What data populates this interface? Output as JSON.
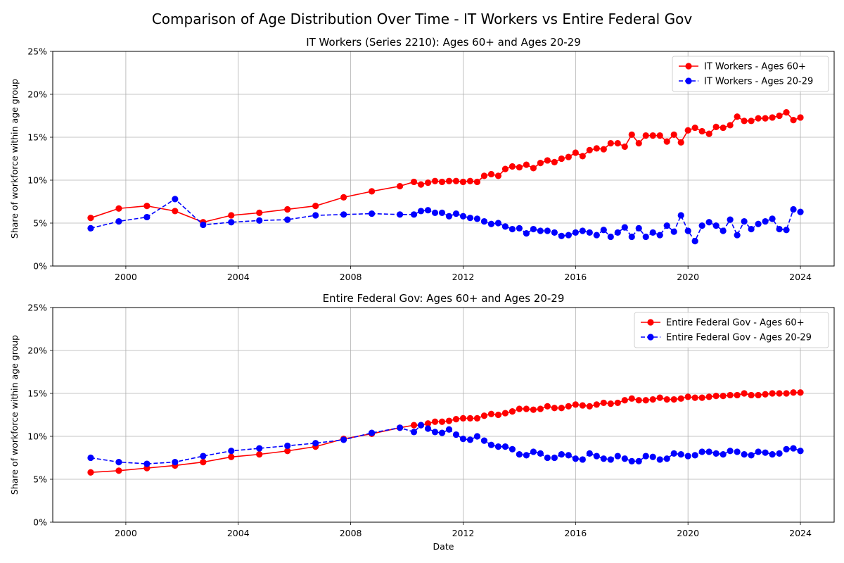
{
  "figure": {
    "suptitle": "Comparison of Age Distribution Over Time - IT Workers vs Entire Federal Gov"
  },
  "chart_data": [
    {
      "type": "line",
      "title": "IT Workers (Series 2210): Ages 60+ and Ages 20-29",
      "xlabel": "",
      "ylabel": "Share of workforce within age group",
      "xlim": [
        1997.4,
        2025.2
      ],
      "ylim": [
        0,
        25
      ],
      "xticks": [
        2000,
        2004,
        2008,
        2012,
        2016,
        2020,
        2024
      ],
      "xtick_labels": [
        "2000",
        "2004",
        "2008",
        "2012",
        "2016",
        "2020",
        "2024"
      ],
      "yticks": [
        0,
        5,
        10,
        15,
        20,
        25
      ],
      "ytick_labels": [
        "0%",
        "5%",
        "10%",
        "15%",
        "20%",
        "25%"
      ],
      "grid": true,
      "legend_position": "upper right",
      "x": [
        1998.75,
        1999.75,
        2000.75,
        2001.75,
        2002.75,
        2003.75,
        2004.75,
        2005.75,
        2006.75,
        2007.75,
        2008.75,
        2009.75,
        2010.25,
        2010.5,
        2010.75,
        2011.0,
        2011.25,
        2011.5,
        2011.75,
        2012.0,
        2012.25,
        2012.5,
        2012.75,
        2013.0,
        2013.25,
        2013.5,
        2013.75,
        2014.0,
        2014.25,
        2014.5,
        2014.75,
        2015.0,
        2015.25,
        2015.5,
        2015.75,
        2016.0,
        2016.25,
        2016.5,
        2016.75,
        2017.0,
        2017.25,
        2017.5,
        2017.75,
        2018.0,
        2018.25,
        2018.5,
        2018.75,
        2019.0,
        2019.25,
        2019.5,
        2019.75,
        2020.0,
        2020.25,
        2020.5,
        2020.75,
        2021.0,
        2021.25,
        2021.5,
        2021.75,
        2022.0,
        2022.25,
        2022.5,
        2022.75,
        2023.0,
        2023.25,
        2023.5,
        2023.75,
        2024.0
      ],
      "series": [
        {
          "name": "IT Workers - Ages 60+",
          "color": "#ff0000",
          "linestyle": "solid",
          "values": [
            5.6,
            6.7,
            7.0,
            6.4,
            5.1,
            5.9,
            6.2,
            6.6,
            7.0,
            8.0,
            8.7,
            9.3,
            9.8,
            9.5,
            9.7,
            9.9,
            9.8,
            9.9,
            9.9,
            9.8,
            9.9,
            9.8,
            10.5,
            10.7,
            10.5,
            11.3,
            11.6,
            11.5,
            11.8,
            11.4,
            12.0,
            12.3,
            12.1,
            12.5,
            12.7,
            13.2,
            12.8,
            13.5,
            13.7,
            13.6,
            14.3,
            14.3,
            13.9,
            15.3,
            14.3,
            15.2,
            15.2,
            15.2,
            14.5,
            15.3,
            14.4,
            15.8,
            16.1,
            15.7,
            15.4,
            16.2,
            16.1,
            16.4,
            17.4,
            16.9,
            16.9,
            17.2,
            17.2,
            17.3,
            17.5,
            17.9,
            17.0,
            17.3
          ]
        },
        {
          "name": "IT Workers - Ages 20-29",
          "color": "#0000ff",
          "linestyle": "dashed",
          "values": [
            4.4,
            5.2,
            5.7,
            7.8,
            4.8,
            5.1,
            5.3,
            5.4,
            5.9,
            6.0,
            6.1,
            6.0,
            6.0,
            6.4,
            6.5,
            6.2,
            6.2,
            5.8,
            6.1,
            5.8,
            5.6,
            5.5,
            5.2,
            4.9,
            5.0,
            4.6,
            4.3,
            4.4,
            3.8,
            4.3,
            4.1,
            4.1,
            3.9,
            3.5,
            3.6,
            3.9,
            4.1,
            3.9,
            3.6,
            4.2,
            3.4,
            3.9,
            4.5,
            3.4,
            4.4,
            3.4,
            3.9,
            3.6,
            4.7,
            4.0,
            5.9,
            4.1,
            2.9,
            4.7,
            5.1,
            4.7,
            4.1,
            5.4,
            3.6,
            5.2,
            4.3,
            4.9,
            5.2,
            5.5,
            4.3,
            4.2,
            6.6,
            6.3
          ]
        }
      ]
    },
    {
      "type": "line",
      "title": "Entire Federal Gov: Ages 60+ and Ages 20-29",
      "xlabel": "Date",
      "ylabel": "Share of workforce within age group",
      "xlim": [
        1997.4,
        2025.2
      ],
      "ylim": [
        0,
        25
      ],
      "xticks": [
        2000,
        2004,
        2008,
        2012,
        2016,
        2020,
        2024
      ],
      "xtick_labels": [
        "2000",
        "2004",
        "2008",
        "2012",
        "2016",
        "2020",
        "2024"
      ],
      "yticks": [
        0,
        5,
        10,
        15,
        20,
        25
      ],
      "ytick_labels": [
        "0%",
        "5%",
        "10%",
        "15%",
        "20%",
        "25%"
      ],
      "grid": true,
      "legend_position": "upper right",
      "x": [
        1998.75,
        1999.75,
        2000.75,
        2001.75,
        2002.75,
        2003.75,
        2004.75,
        2005.75,
        2006.75,
        2007.75,
        2008.75,
        2009.75,
        2010.25,
        2010.5,
        2010.75,
        2011.0,
        2011.25,
        2011.5,
        2011.75,
        2012.0,
        2012.25,
        2012.5,
        2012.75,
        2013.0,
        2013.25,
        2013.5,
        2013.75,
        2014.0,
        2014.25,
        2014.5,
        2014.75,
        2015.0,
        2015.25,
        2015.5,
        2015.75,
        2016.0,
        2016.25,
        2016.5,
        2016.75,
        2017.0,
        2017.25,
        2017.5,
        2017.75,
        2018.0,
        2018.25,
        2018.5,
        2018.75,
        2019.0,
        2019.25,
        2019.5,
        2019.75,
        2020.0,
        2020.25,
        2020.5,
        2020.75,
        2021.0,
        2021.25,
        2021.5,
        2021.75,
        2022.0,
        2022.25,
        2022.5,
        2022.75,
        2023.0,
        2023.25,
        2023.5,
        2023.75,
        2024.0
      ],
      "series": [
        {
          "name": "Entire Federal Gov - Ages 60+",
          "color": "#ff0000",
          "linestyle": "solid",
          "values": [
            5.8,
            6.0,
            6.3,
            6.6,
            7.0,
            7.6,
            7.9,
            8.3,
            8.8,
            9.7,
            10.3,
            11.0,
            11.3,
            11.3,
            11.5,
            11.7,
            11.7,
            11.8,
            12.0,
            12.1,
            12.1,
            12.1,
            12.4,
            12.6,
            12.5,
            12.7,
            12.9,
            13.2,
            13.2,
            13.1,
            13.2,
            13.5,
            13.3,
            13.3,
            13.5,
            13.7,
            13.6,
            13.5,
            13.7,
            13.9,
            13.8,
            13.9,
            14.2,
            14.4,
            14.2,
            14.2,
            14.3,
            14.5,
            14.3,
            14.3,
            14.4,
            14.6,
            14.5,
            14.5,
            14.6,
            14.7,
            14.7,
            14.8,
            14.8,
            15.0,
            14.8,
            14.8,
            14.9,
            15.0,
            15.0,
            15.0,
            15.1,
            15.1
          ]
        },
        {
          "name": "Entire Federal Gov - Ages 20-29",
          "color": "#0000ff",
          "linestyle": "dashed",
          "values": [
            7.5,
            7.0,
            6.8,
            7.0,
            7.7,
            8.3,
            8.6,
            8.9,
            9.2,
            9.6,
            10.4,
            11.0,
            10.5,
            11.3,
            10.9,
            10.5,
            10.4,
            10.8,
            10.2,
            9.7,
            9.6,
            10.0,
            9.5,
            9.0,
            8.8,
            8.8,
            8.5,
            7.9,
            7.8,
            8.2,
            8.0,
            7.5,
            7.5,
            7.9,
            7.8,
            7.4,
            7.3,
            8.0,
            7.7,
            7.4,
            7.3,
            7.7,
            7.4,
            7.1,
            7.1,
            7.7,
            7.6,
            7.3,
            7.4,
            8.0,
            7.9,
            7.7,
            7.8,
            8.2,
            8.2,
            8.0,
            7.9,
            8.3,
            8.2,
            7.9,
            7.8,
            8.2,
            8.1,
            7.9,
            8.0,
            8.5,
            8.6,
            8.3
          ]
        }
      ]
    }
  ]
}
